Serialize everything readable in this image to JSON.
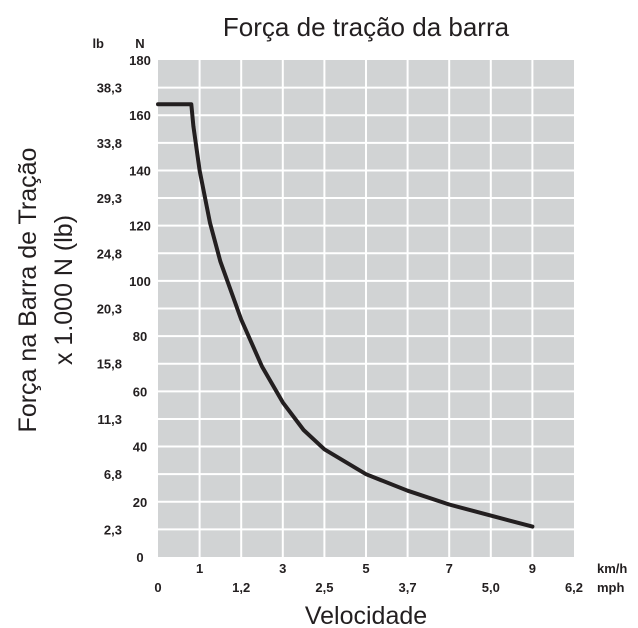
{
  "chart_data": {
    "type": "line",
    "title": "Força de tração da barra",
    "ylabel_lines": [
      "Força na Barra de Tração",
      "x 1.000 N (lb)"
    ],
    "xlabel": "Velocidade",
    "x_unit_primary": "km/h",
    "x_unit_secondary": "mph",
    "y_unit_primary": "N",
    "y_unit_secondary": "lb",
    "xlim": [
      0,
      10
    ],
    "ylim": [
      0,
      180
    ],
    "grid": true,
    "x_ticks_kmh": [
      "1",
      "3",
      "5",
      "7",
      "9"
    ],
    "x_ticks_mph": [
      "0",
      "1,2",
      "2,5",
      "3,7",
      "5,0",
      "6,2"
    ],
    "y_ticks_n": [
      "0",
      "20",
      "40",
      "60",
      "80",
      "100",
      "120",
      "140",
      "160",
      "180"
    ],
    "y_ticks_lb": [
      "2,3",
      "6,8",
      "11,3",
      "15,8",
      "20,3",
      "24,8",
      "29,3",
      "33,8",
      "38,3"
    ],
    "series": [
      {
        "x": [
          0,
          0.8,
          0.85,
          1.0,
          1.25,
          1.5,
          2.0,
          2.5,
          3.0,
          3.5,
          4.0,
          5.0,
          6.0,
          7.0,
          8.0,
          9.0
        ],
        "y": [
          164,
          164,
          156,
          140,
          121,
          107,
          86,
          69,
          56,
          46,
          39,
          30,
          24,
          19,
          15,
          11
        ]
      }
    ],
    "colors": {
      "plot_bg": "#d1d3d4",
      "grid": "#ffffff",
      "line": "#231f20"
    }
  }
}
